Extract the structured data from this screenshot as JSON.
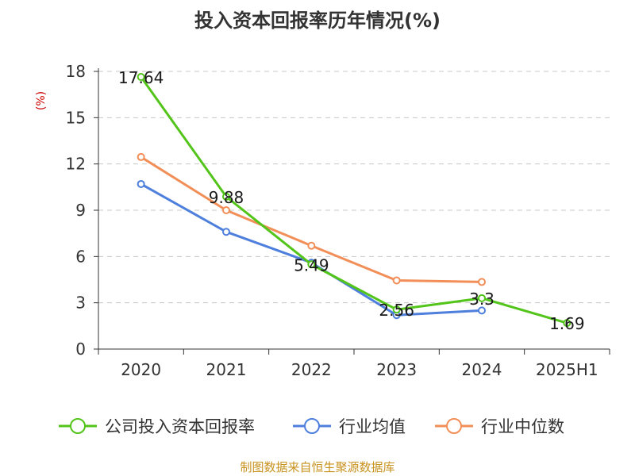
{
  "chart_data": {
    "type": "line",
    "title": "投入资本回报率历年情况(%)",
    "ylabel": "(%)",
    "categories": [
      "2020",
      "2021",
      "2022",
      "2023",
      "2024",
      "2025H1"
    ],
    "ylim": [
      0,
      18
    ],
    "yticks": [
      0,
      3,
      6,
      9,
      12,
      15,
      18
    ],
    "grid": true,
    "legend_position": "bottom",
    "series": [
      {
        "name": "公司投入资本回报率",
        "color": "#52c41a",
        "values": [
          17.64,
          9.88,
          5.49,
          2.56,
          3.3,
          1.69
        ],
        "labels": [
          "17.64",
          "9.88",
          "5.49",
          "2.56",
          "3.3",
          "1.69"
        ]
      },
      {
        "name": "行业均值",
        "color": "#4e7fdc",
        "values": [
          10.7,
          7.6,
          5.6,
          2.2,
          2.5,
          null
        ]
      },
      {
        "name": "行业中位数",
        "color": "#f28e57",
        "values": [
          12.45,
          9.0,
          6.7,
          4.45,
          4.35,
          null
        ]
      }
    ]
  },
  "footer": {
    "source": "制图数据来自恒生聚源数据库"
  }
}
